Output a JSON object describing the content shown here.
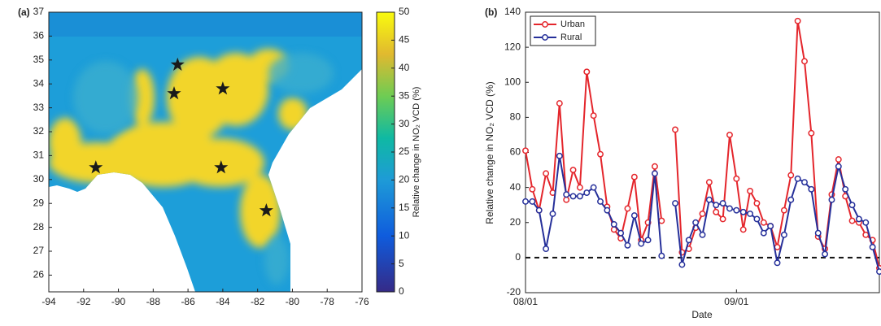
{
  "chart_data": [
    {
      "type": "map",
      "panel_label": "(a)",
      "xlim": [
        -94,
        -76
      ],
      "xticks": [
        -94,
        -92,
        -90,
        -88,
        -86,
        -84,
        -82,
        -80,
        -78,
        -76
      ],
      "ylim": [
        25.3,
        37
      ],
      "yticks": [
        26,
        27,
        28,
        29,
        30,
        31,
        32,
        33,
        34,
        35,
        36,
        37
      ],
      "markers": {
        "x": [
          -91.3,
          -86.6,
          -86.8,
          -84.0,
          -84.1,
          -81.5
        ],
        "y": [
          30.5,
          34.8,
          33.6,
          33.8,
          30.5,
          28.7
        ],
        "color": "#1a1a1a"
      },
      "colorbar": {
        "label": "Relative change in NO₂ VCD (%)",
        "lim": [
          0,
          50
        ],
        "ticks": [
          0,
          5,
          10,
          15,
          20,
          25,
          30,
          35,
          40,
          45,
          50
        ]
      }
    },
    {
      "type": "line",
      "panel_label": "(b)",
      "x_label": "Date",
      "y_label": "Relative change in NO₂ VCD (%)",
      "x": [
        "08/01",
        "08/02",
        "08/03",
        "08/04",
        "08/05",
        "08/06",
        "08/07",
        "08/08",
        "08/09",
        "08/10",
        "08/11",
        "08/12",
        "08/13",
        "08/14",
        "08/15",
        "08/16",
        "08/17",
        "08/18",
        "08/19",
        "08/20",
        "08/21",
        "08/22",
        "08/23",
        "08/24",
        "08/25",
        "08/26",
        "08/27",
        "08/28",
        "08/29",
        "08/30",
        "08/31",
        "09/01",
        "09/02",
        "09/03",
        "09/04",
        "09/05",
        "09/06",
        "09/07",
        "09/08",
        "09/09",
        "09/10",
        "09/11",
        "09/12",
        "09/13",
        "09/14",
        "09/15",
        "09/16",
        "09/17",
        "09/18",
        "09/19",
        "09/20",
        "09/21",
        "09/22"
      ],
      "xlim": [
        "08/01",
        "09/22"
      ],
      "xticks": [
        "08/01",
        "09/01"
      ],
      "ylim": [
        -20,
        140
      ],
      "yticks": [
        -20,
        0,
        20,
        40,
        60,
        80,
        100,
        120,
        140
      ],
      "hline": 0,
      "legend": "upper left",
      "series": [
        {
          "name": "Urban",
          "color": "#e4262c",
          "values": [
            61,
            39,
            27,
            48,
            37,
            88,
            33,
            50,
            40,
            106,
            81,
            59,
            29,
            16,
            11,
            28,
            46,
            10,
            20,
            52,
            21,
            null,
            73,
            3,
            5,
            17,
            25,
            43,
            26,
            22,
            70,
            45,
            16,
            38,
            31,
            20,
            18,
            6,
            27,
            47,
            135,
            112,
            71,
            12,
            5,
            36,
            56,
            35,
            21,
            20,
            13,
            10,
            -6
          ]
        },
        {
          "name": "Rural",
          "color": "#26309a",
          "values": [
            32,
            32,
            27,
            5,
            25,
            58,
            36,
            35,
            35,
            37,
            40,
            32,
            27,
            19,
            14,
            7,
            24,
            8,
            10,
            48,
            1,
            null,
            31,
            -4,
            10,
            20,
            13,
            33,
            30,
            31,
            28,
            27,
            26,
            25,
            22,
            14,
            18,
            -3,
            13,
            33,
            45,
            43,
            39,
            14,
            2,
            33,
            52,
            39,
            30,
            22,
            20,
            6,
            -8
          ]
        }
      ]
    }
  ]
}
